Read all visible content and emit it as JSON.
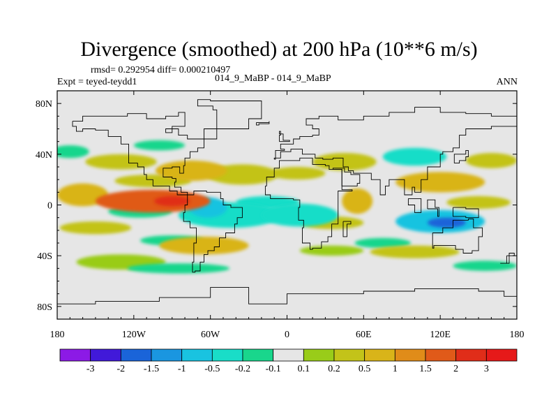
{
  "page": {
    "title": "Divergence (smoothed) at 200 hPa (10**6 m/s)",
    "stats": "rmsd= 0.292954 diff= 0.000210497",
    "expt": "Expt = teyed-teydd1",
    "case": "014_9_MaBP - 014_9_MaBP",
    "season": "ANN"
  },
  "colors": {
    "background_field": "#e6e6e6",
    "coastline": "#000000"
  },
  "chart_data": {
    "type": "heatmap",
    "title": "Divergence (smoothed) at 200 hPa (10**6 m/s)",
    "xlabel": "",
    "ylabel": "",
    "xlim": [
      -180,
      180
    ],
    "ylim": [
      -90,
      90
    ],
    "x_ticks": [
      {
        "value": -180,
        "label": "180"
      },
      {
        "value": -120,
        "label": "120W"
      },
      {
        "value": -60,
        "label": "60W"
      },
      {
        "value": 0,
        "label": "0"
      },
      {
        "value": 60,
        "label": "60E"
      },
      {
        "value": 120,
        "label": "120E"
      },
      {
        "value": 180,
        "label": "180"
      }
    ],
    "y_ticks": [
      {
        "value": 80,
        "label": "80N"
      },
      {
        "value": 40,
        "label": "40N"
      },
      {
        "value": 0,
        "label": "0"
      },
      {
        "value": -40,
        "label": "40S"
      },
      {
        "value": -80,
        "label": "80S"
      }
    ],
    "colorbar": {
      "colors": [
        "#8c1ae6",
        "#4119d9",
        "#1a64d9",
        "#1a96e0",
        "#19c3e0",
        "#19ddc8",
        "#19d68c",
        "#e6e6e6",
        "#99cc19",
        "#c3c319",
        "#d9b419",
        "#e08c19",
        "#e05a19",
        "#e02d19",
        "#e61919"
      ],
      "labels": [
        "-3",
        "-2",
        "-1.5",
        "-1",
        "-0.5",
        "-0.2",
        "-0.1",
        "0.1",
        "0.2",
        "0.5",
        "1",
        "1.5",
        "2",
        "3"
      ]
    },
    "anomalies": [
      {
        "lon": -105,
        "lat": 3,
        "rx": 45,
        "ry": 9,
        "value": 1.6
      },
      {
        "lon": -90,
        "lat": 3,
        "rx": 14,
        "ry": 4,
        "value": 2.0
      },
      {
        "lon": -160,
        "lat": 8,
        "rx": 20,
        "ry": 9,
        "value": 0.7
      },
      {
        "lon": -75,
        "lat": 27,
        "rx": 28,
        "ry": 8,
        "value": 0.5
      },
      {
        "lon": -130,
        "lat": 34,
        "rx": 28,
        "ry": 6,
        "value": 0.3
      },
      {
        "lon": -105,
        "lat": 19,
        "rx": 30,
        "ry": 5,
        "value": 0.25
      },
      {
        "lon": -35,
        "lat": 24,
        "rx": 28,
        "ry": 8,
        "value": 0.35
      },
      {
        "lon": 8,
        "lat": 25,
        "rx": 22,
        "ry": 5,
        "value": 0.3
      },
      {
        "lon": 45,
        "lat": 34,
        "rx": 25,
        "ry": 7,
        "value": 0.3
      },
      {
        "lon": 55,
        "lat": 3,
        "rx": 12,
        "ry": 10,
        "value": 0.9
      },
      {
        "lon": 120,
        "lat": 18,
        "rx": 35,
        "ry": 8,
        "value": 0.5
      },
      {
        "lon": 150,
        "lat": 2,
        "rx": 25,
        "ry": 5,
        "value": 0.4
      },
      {
        "lon": 160,
        "lat": 35,
        "rx": 20,
        "ry": 6,
        "value": 0.2
      },
      {
        "lon": -150,
        "lat": -18,
        "rx": 28,
        "ry": 5,
        "value": 0.3
      },
      {
        "lon": -65,
        "lat": -32,
        "rx": 35,
        "ry": 7,
        "value": 0.5
      },
      {
        "lon": 35,
        "lat": -14,
        "rx": 25,
        "ry": 5,
        "value": 0.3
      },
      {
        "lon": 100,
        "lat": -37,
        "rx": 35,
        "ry": 5,
        "value": 0.25
      },
      {
        "lon": -130,
        "lat": -45,
        "rx": 35,
        "ry": 6,
        "value": 0.15
      },
      {
        "lon": 35,
        "lat": -36,
        "rx": 25,
        "ry": 4,
        "value": 0.15
      },
      {
        "lon": -45,
        "lat": -8,
        "rx": 40,
        "ry": 10,
        "value": -0.5
      },
      {
        "lon": -62,
        "lat": -2,
        "rx": 15,
        "ry": 8,
        "value": -1.0
      },
      {
        "lon": 10,
        "lat": -8,
        "rx": 30,
        "ry": 9,
        "value": -0.5
      },
      {
        "lon": 120,
        "lat": -13,
        "rx": 35,
        "ry": 9,
        "value": -0.8
      },
      {
        "lon": 125,
        "lat": -14,
        "rx": 15,
        "ry": 4,
        "value": -1.7
      },
      {
        "lon": -115,
        "lat": -5,
        "rx": 25,
        "ry": 5,
        "value": -0.2
      },
      {
        "lon": 100,
        "lat": 38,
        "rx": 25,
        "ry": 7,
        "value": -0.3
      },
      {
        "lon": -15,
        "lat": 2,
        "rx": 25,
        "ry": 5,
        "value": -0.25
      },
      {
        "lon": -90,
        "lat": -28,
        "rx": 25,
        "ry": 4,
        "value": -0.15
      },
      {
        "lon": -170,
        "lat": 42,
        "rx": 15,
        "ry": 5,
        "value": -0.15
      },
      {
        "lon": -100,
        "lat": 47,
        "rx": 20,
        "ry": 4,
        "value": -0.15
      },
      {
        "lon": 75,
        "lat": -30,
        "rx": 22,
        "ry": 4,
        "value": -0.15
      },
      {
        "lon": -85,
        "lat": -50,
        "rx": 40,
        "ry": 4,
        "value": -0.15
      },
      {
        "lon": 155,
        "lat": -48,
        "rx": 25,
        "ry": 4,
        "value": -0.15
      },
      {
        "lon": -125,
        "lat": 0,
        "rx": 10,
        "ry": 3,
        "value": -0.3
      }
    ],
    "coastlines": [
      [
        [
          -168,
          66
        ],
        [
          -160,
          70
        ],
        [
          -140,
          70
        ],
        [
          -125,
          72
        ],
        [
          -110,
          68
        ],
        [
          -95,
          70
        ],
        [
          -85,
          73
        ],
        [
          -80,
          62
        ],
        [
          -90,
          57
        ],
        [
          -95,
          60
        ],
        [
          -85,
          55
        ],
        [
          -78,
          52
        ],
        [
          -65,
          60
        ],
        [
          -55,
          52
        ],
        [
          -65,
          45
        ],
        [
          -70,
          42
        ],
        [
          -76,
          37
        ],
        [
          -80,
          31
        ],
        [
          -81,
          25
        ],
        [
          -84,
          30
        ],
        [
          -90,
          29
        ],
        [
          -97,
          27
        ],
        [
          -97,
          22
        ],
        [
          -90,
          21
        ],
        [
          -87,
          18
        ],
        [
          -88,
          14
        ],
        [
          -83,
          10
        ],
        [
          -78,
          8
        ],
        [
          -82,
          8
        ],
        [
          -86,
          11
        ],
        [
          -92,
          15
        ],
        [
          -105,
          20
        ],
        [
          -110,
          24
        ],
        [
          -112,
          30
        ],
        [
          -117,
          33
        ],
        [
          -124,
          40
        ],
        [
          -124,
          48
        ],
        [
          -130,
          54
        ],
        [
          -140,
          59
        ],
        [
          -150,
          60
        ],
        [
          -160,
          58
        ],
        [
          -165,
          62
        ],
        [
          -168,
          66
        ]
      ],
      [
        [
          -78,
          8
        ],
        [
          -73,
          11
        ],
        [
          -63,
          10
        ],
        [
          -52,
          5
        ],
        [
          -50,
          0
        ],
        [
          -44,
          -2
        ],
        [
          -35,
          -5
        ],
        [
          -35,
          -10
        ],
        [
          -39,
          -15
        ],
        [
          -41,
          -22
        ],
        [
          -48,
          -26
        ],
        [
          -53,
          -33
        ],
        [
          -57,
          -36
        ],
        [
          -62,
          -39
        ],
        [
          -65,
          -45
        ],
        [
          -68,
          -52
        ],
        [
          -72,
          -53
        ],
        [
          -74,
          -45
        ],
        [
          -73,
          -30
        ],
        [
          -71,
          -18
        ],
        [
          -76,
          -13
        ],
        [
          -81,
          -6
        ],
        [
          -80,
          0
        ],
        [
          -78,
          8
        ]
      ],
      [
        [
          -17,
          15
        ],
        [
          -16,
          22
        ],
        [
          -10,
          29
        ],
        [
          -6,
          35
        ],
        [
          10,
          37
        ],
        [
          20,
          32
        ],
        [
          30,
          31
        ],
        [
          33,
          28
        ],
        [
          43,
          12
        ],
        [
          51,
          11
        ],
        [
          40,
          -5
        ],
        [
          40,
          -15
        ],
        [
          35,
          -25
        ],
        [
          32,
          -29
        ],
        [
          27,
          -34
        ],
        [
          20,
          -35
        ],
        [
          18,
          -30
        ],
        [
          12,
          -18
        ],
        [
          13,
          -12
        ],
        [
          9,
          -2
        ],
        [
          10,
          4
        ],
        [
          5,
          5
        ],
        [
          -5,
          5
        ],
        [
          -13,
          8
        ],
        [
          -17,
          15
        ]
      ],
      [
        [
          -10,
          36
        ],
        [
          -9,
          43
        ],
        [
          -2,
          44
        ],
        [
          -5,
          48
        ],
        [
          5,
          52
        ],
        [
          10,
          54
        ],
        [
          20,
          55
        ],
        [
          25,
          60
        ],
        [
          20,
          63
        ],
        [
          15,
          68
        ],
        [
          25,
          70
        ],
        [
          40,
          67
        ],
        [
          60,
          70
        ],
        [
          80,
          73
        ],
        [
          100,
          77
        ],
        [
          120,
          73
        ],
        [
          140,
          72
        ],
        [
          160,
          70
        ],
        [
          180,
          68
        ],
        [
          180,
          62
        ],
        [
          160,
          60
        ],
        [
          140,
          55
        ],
        [
          135,
          45
        ],
        [
          130,
          42
        ],
        [
          122,
          40
        ],
        [
          120,
          30
        ],
        [
          110,
          20
        ],
        [
          105,
          10
        ],
        [
          100,
          14
        ],
        [
          98,
          8
        ],
        [
          92,
          20
        ],
        [
          80,
          15
        ],
        [
          77,
          8
        ],
        [
          73,
          20
        ],
        [
          66,
          25
        ],
        [
          57,
          25
        ],
        [
          52,
          27
        ],
        [
          48,
          30
        ],
        [
          44,
          37
        ],
        [
          36,
          36
        ],
        [
          28,
          37
        ],
        [
          22,
          40
        ],
        [
          18,
          40
        ],
        [
          12,
          44
        ],
        [
          9,
          44
        ],
        [
          3,
          42
        ],
        [
          -5,
          37
        ],
        [
          -10,
          36
        ]
      ],
      [
        [
          36,
          28
        ],
        [
          43,
          15
        ],
        [
          50,
          15
        ],
        [
          55,
          17
        ],
        [
          57,
          24
        ],
        [
          50,
          26
        ],
        [
          45,
          29
        ],
        [
          36,
          28
        ]
      ],
      [
        [
          114,
          -22
        ],
        [
          122,
          -18
        ],
        [
          130,
          -12
        ],
        [
          137,
          -12
        ],
        [
          142,
          -11
        ],
        [
          146,
          -18
        ],
        [
          153,
          -25
        ],
        [
          150,
          -36
        ],
        [
          145,
          -38
        ],
        [
          138,
          -35
        ],
        [
          132,
          -32
        ],
        [
          115,
          -34
        ],
        [
          114,
          -22
        ]
      ],
      [
        [
          -55,
          60
        ],
        [
          -44,
          60
        ],
        [
          -30,
          68
        ],
        [
          -20,
          75
        ],
        [
          -20,
          82
        ],
        [
          -60,
          83
        ],
        [
          -70,
          78
        ],
        [
          -58,
          75
        ],
        [
          -55,
          60
        ]
      ],
      [
        [
          -180,
          -78
        ],
        [
          -150,
          -76
        ],
        [
          -100,
          -73
        ],
        [
          -60,
          -73
        ],
        [
          -60,
          -65
        ],
        [
          -30,
          -78
        ],
        [
          0,
          -70
        ],
        [
          60,
          -68
        ],
        [
          100,
          -66
        ],
        [
          150,
          -68
        ],
        [
          170,
          -72
        ],
        [
          180,
          -78
        ]
      ],
      [
        [
          95,
          5
        ],
        [
          105,
          -6
        ],
        [
          100,
          0
        ],
        [
          95,
          5
        ]
      ],
      [
        [
          110,
          -3
        ],
        [
          118,
          -9
        ],
        [
          119,
          -2
        ],
        [
          116,
          4
        ],
        [
          110,
          -3
        ]
      ],
      [
        [
          130,
          -2
        ],
        [
          140,
          -3
        ],
        [
          150,
          -10
        ],
        [
          140,
          -9
        ],
        [
          130,
          -2
        ]
      ],
      [
        [
          131,
          33
        ],
        [
          135,
          35
        ],
        [
          140,
          38
        ],
        [
          142,
          43
        ],
        [
          140,
          40
        ],
        [
          131,
          33
        ]
      ],
      [
        [
          -6,
          50
        ],
        [
          2,
          51
        ],
        [
          -3,
          56
        ],
        [
          -6,
          58
        ],
        [
          -5,
          55
        ],
        [
          -6,
          50
        ]
      ],
      [
        [
          172,
          -40
        ],
        [
          178,
          -38
        ],
        [
          174,
          -46
        ],
        [
          167,
          -46
        ],
        [
          172,
          -40
        ]
      ],
      [
        [
          44,
          -13
        ],
        [
          50,
          -15
        ],
        [
          47,
          -25
        ],
        [
          44,
          -22
        ],
        [
          44,
          -13
        ]
      ],
      [
        [
          -24,
          65
        ],
        [
          -14,
          66
        ],
        [
          -14,
          64
        ],
        [
          -22,
          63
        ],
        [
          -24,
          65
        ]
      ]
    ]
  }
}
